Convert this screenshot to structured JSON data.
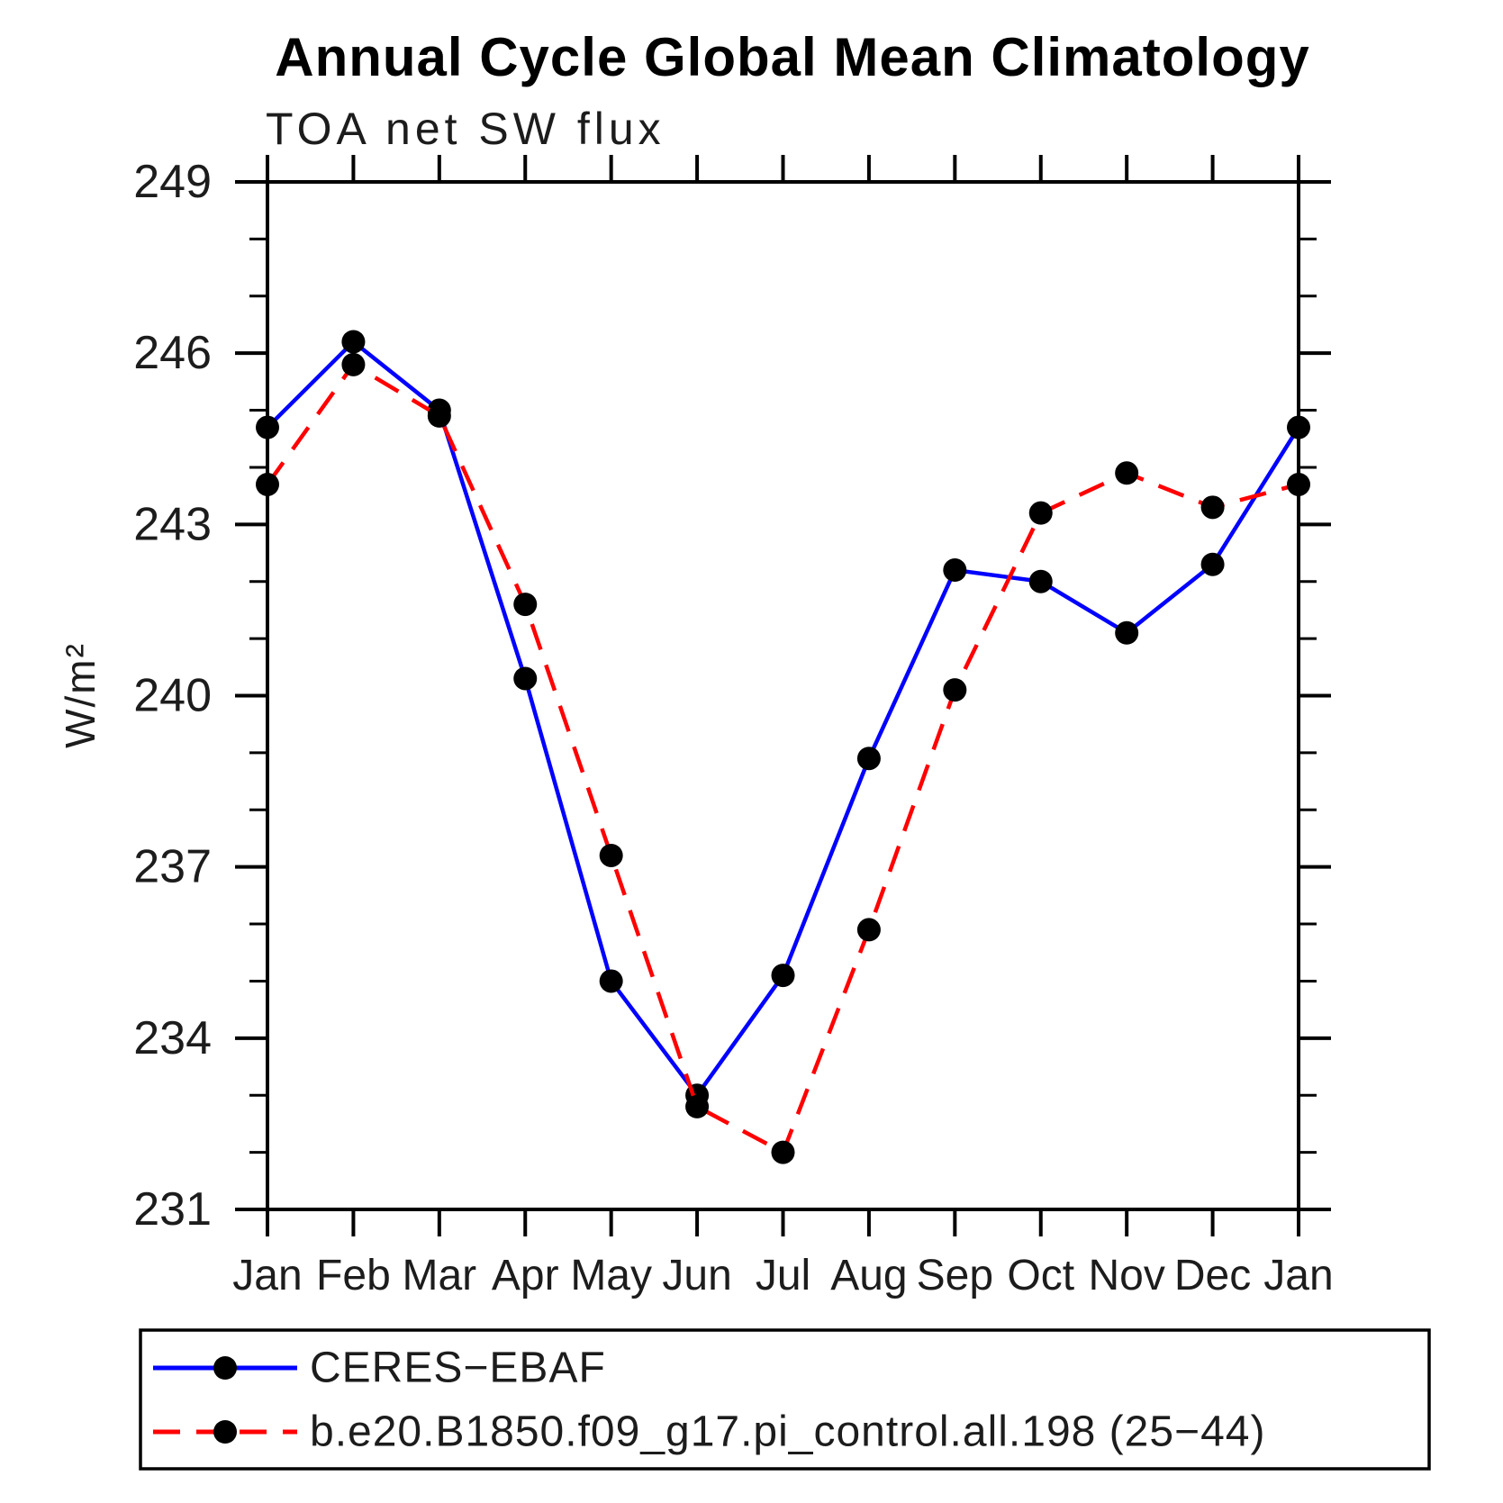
{
  "title": "Annual Cycle Global Mean Climatology",
  "subtitle": "TOA net SW flux",
  "y_axis_label": "W/m²",
  "chart_data": {
    "type": "line",
    "x_categories": [
      "Jan",
      "Feb",
      "Mar",
      "Apr",
      "May",
      "Jun",
      "Jul",
      "Aug",
      "Sep",
      "Oct",
      "Nov",
      "Dec",
      "Jan"
    ],
    "ylim": [
      231,
      249
    ],
    "ytick_major": [
      249,
      246,
      243,
      240,
      237,
      234,
      231
    ],
    "ytick_minor_step": 1,
    "grid": false,
    "legend_position": "bottom-left",
    "series": [
      {
        "name": "CERES−EBAF",
        "line_style": "solid",
        "color": "#0000ff",
        "marker": "filled-circle",
        "marker_color": "#000000",
        "values": [
          244.7,
          246.2,
          245.0,
          240.3,
          235.0,
          233.0,
          235.1,
          238.9,
          242.2,
          242.0,
          241.1,
          242.3,
          244.7
        ]
      },
      {
        "name": "b.e20.B1850.f09_g17.pi_control.all.198 (25−44)",
        "line_style": "dashed",
        "color": "#ff0000",
        "marker": "filled-circle",
        "marker_color": "#000000",
        "values": [
          243.7,
          245.8,
          244.9,
          241.6,
          237.2,
          232.8,
          232.0,
          235.9,
          240.1,
          243.2,
          243.9,
          243.3,
          243.7
        ]
      }
    ]
  }
}
